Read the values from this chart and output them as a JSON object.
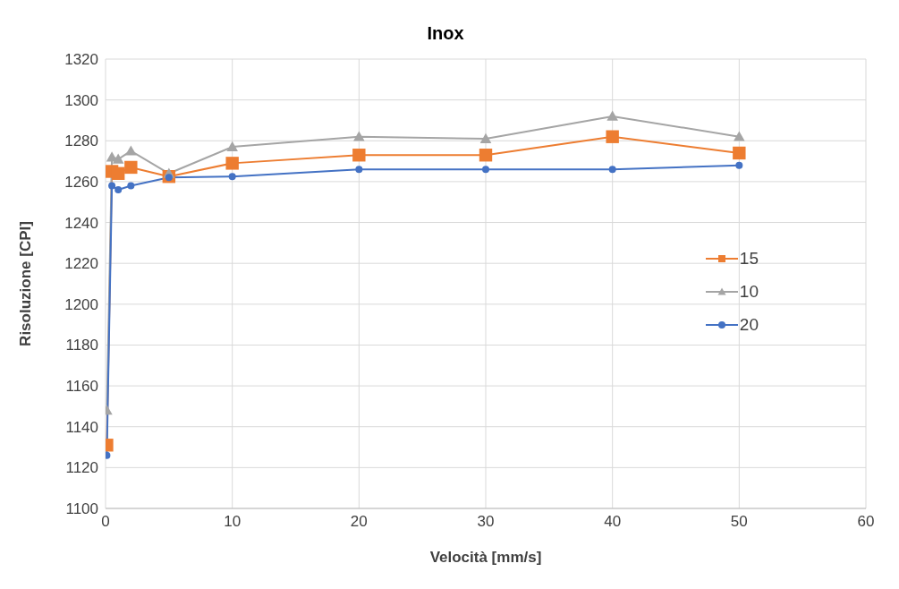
{
  "chart_data": {
    "type": "line",
    "title": "Inox",
    "xlabel": "Velocità [mm/s]",
    "ylabel": "Risoluzione [CPI]",
    "x": [
      0.1,
      0.5,
      1,
      2,
      5,
      10,
      20,
      30,
      40,
      50
    ],
    "series": [
      {
        "name": "15",
        "color": "#ed7d31",
        "marker": "square",
        "values": [
          1131,
          1265,
          1264,
          1267,
          1262.5,
          1269,
          1273,
          1273,
          1282,
          1274
        ]
      },
      {
        "name": "10",
        "color": "#a5a5a5",
        "marker": "triangle",
        "values": [
          1148,
          1272,
          1271,
          1275,
          1264,
          1277,
          1282,
          1281,
          1292,
          1282
        ]
      },
      {
        "name": "20",
        "color": "#4472c4",
        "marker": "circle",
        "values": [
          1126,
          1258,
          1256,
          1258,
          1262,
          1262.5,
          1266,
          1266,
          1266,
          1268
        ]
      }
    ],
    "xlim": [
      0,
      60
    ],
    "xticks": [
      0,
      10,
      20,
      30,
      40,
      50,
      60
    ],
    "ylim": [
      1100,
      1320
    ],
    "yticks": [
      1100,
      1120,
      1140,
      1160,
      1180,
      1200,
      1220,
      1240,
      1260,
      1280,
      1300,
      1320
    ],
    "grid": true,
    "legend": "right",
    "line_style": "solid"
  }
}
